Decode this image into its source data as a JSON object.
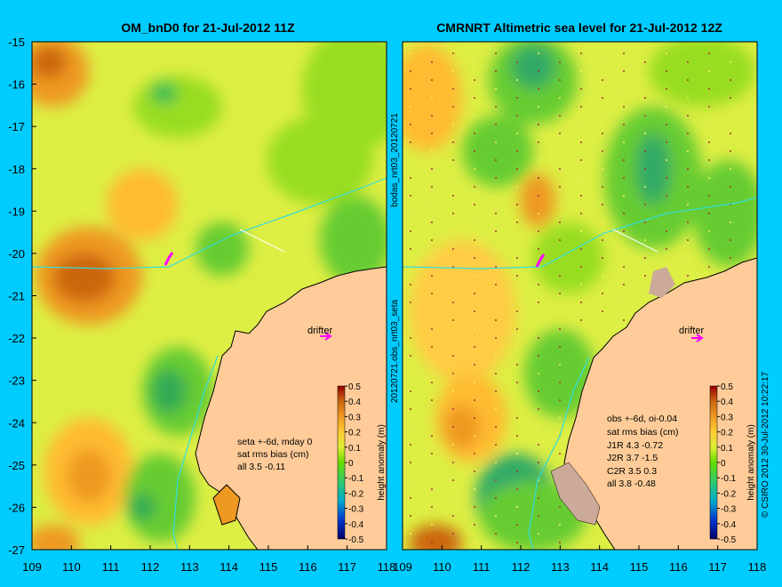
{
  "colors": {
    "background": "#00ccff",
    "land": "#ffcc99",
    "coast": "#000000",
    "drifter": "#ff00ff",
    "altimeter_track": "#ffffff"
  },
  "left_panel": {
    "title": "OM_bnD0 for 21-Jul-2012 11Z",
    "annotation": [
      "seta +-6d, mday 0",
      "sat rms bias (cm)",
      "all 3.5 -0.11"
    ],
    "drifter_label": "drifter"
  },
  "right_panel": {
    "title": "CMRNRT Altimetric sea level  for 21-Jul-2012 12Z",
    "annotation": [
      "obs +-6d, oi-0.04",
      "sat rms bias (cm)",
      "J1R   4.3 -0.72",
      "J2R   3.7 -1.5",
      "C2R   3.5  0.3",
      "all 3.8 -0.48"
    ],
    "drifter_label": "drifter"
  },
  "axes": {
    "lat_ticks": [
      "-15",
      "-16",
      "-17",
      "-18",
      "-19",
      "-20",
      "-21",
      "-22",
      "-23",
      "-24",
      "-25",
      "-26",
      "-27"
    ],
    "lon_ticks_left": [
      "109",
      "110",
      "111",
      "112",
      "113",
      "114",
      "115",
      "116",
      "117",
      "118"
    ],
    "lon_ticks_right": [
      "109",
      "110",
      "111",
      "112",
      "113",
      "114",
      "115",
      "116",
      "117",
      "118"
    ]
  },
  "colorbar": {
    "label": "height anomaly (m)",
    "ticks": [
      "0.5",
      "0.4",
      "0.3",
      "0.2",
      "0.1",
      "0",
      "-0.1",
      "-0.2",
      "-0.3",
      "-0.4",
      "-0.5"
    ],
    "range": [
      -0.5,
      0.5
    ]
  },
  "middle_labels": {
    "top": "bodas_nrt03_20120721",
    "bottom": "20120721.obs_nrt03_seta"
  },
  "credit": "© CSIRO 2012   30-Jul-2012 10:22:17"
}
